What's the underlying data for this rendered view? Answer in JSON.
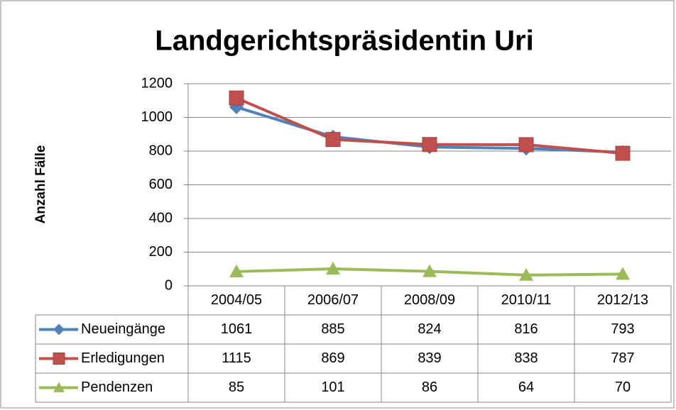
{
  "chart_data": {
    "type": "line",
    "title": "Landgerichtspräsidentin Uri",
    "y_label": "Anzahl Fälle",
    "categories": [
      "2004/05",
      "2006/07",
      "2008/09",
      "2010/11",
      "2012/13"
    ],
    "series": [
      {
        "name": "Neueingänge",
        "color": "#4f81bd",
        "marker": "diamond",
        "values": [
          1061,
          885,
          824,
          816,
          793
        ]
      },
      {
        "name": "Erledigungen",
        "color": "#c0504d",
        "marker": "square",
        "values": [
          1115,
          869,
          839,
          838,
          787
        ]
      },
      {
        "name": "Pendenzen",
        "color": "#9bbb59",
        "marker": "triangle",
        "values": [
          85,
          101,
          86,
          64,
          70
        ]
      }
    ],
    "ylim": [
      0,
      1200
    ],
    "yticks": [
      0,
      200,
      400,
      600,
      800,
      1000,
      1200
    ],
    "grid": true,
    "data_table": true
  }
}
